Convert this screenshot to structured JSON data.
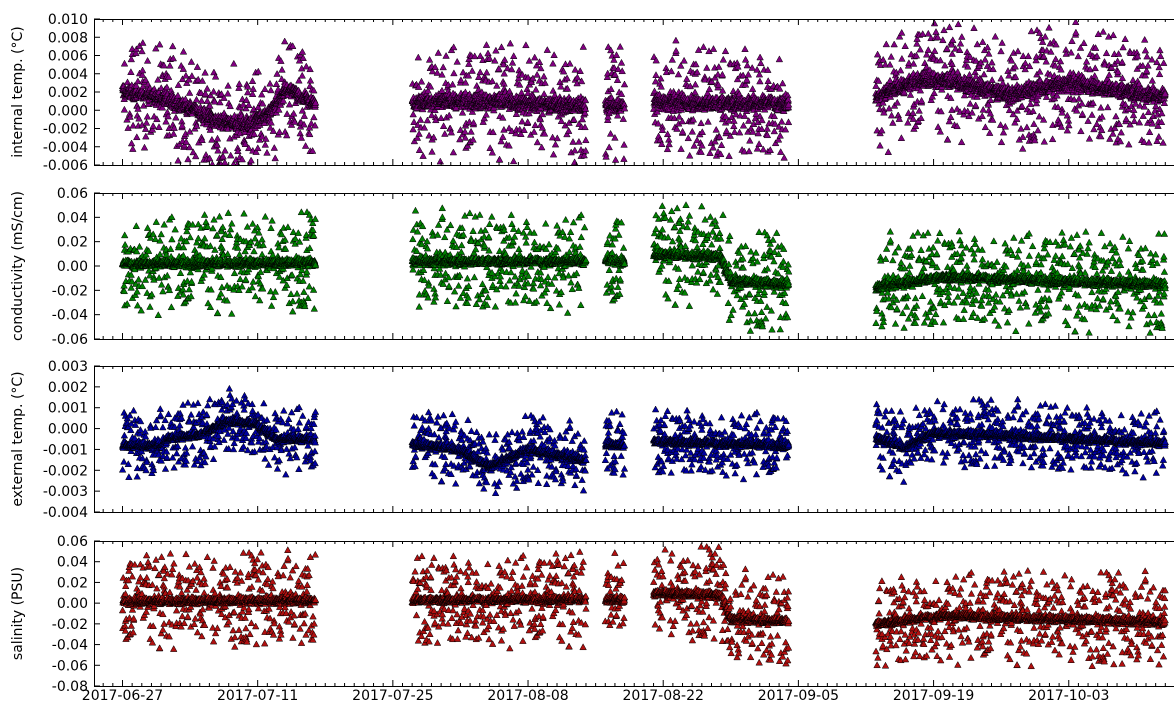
{
  "chart_data": {
    "type": "scatter",
    "marker": "triangle",
    "shared_x": {
      "range": [
        "2017-06-27",
        "2017-10-13"
      ],
      "tick_labels": [
        "2017-06-27",
        "2017-07-11",
        "2017-07-25",
        "2017-08-08",
        "2017-08-22",
        "2017-09-05",
        "2017-09-19",
        "2017-10-03"
      ]
    },
    "data_segments": [
      [
        "2017-06-27",
        "2017-07-17"
      ],
      [
        "2017-07-27",
        "2017-08-14"
      ],
      [
        "2017-08-16",
        "2017-08-18"
      ],
      [
        "2017-08-21",
        "2017-09-04"
      ],
      [
        "2017-09-13",
        "2017-10-13"
      ]
    ],
    "panels": [
      {
        "id": "internal",
        "ylabel": "internal temp. (°C)",
        "ylim": [
          -0.006,
          0.01
        ],
        "yticks": [
          "0.010",
          "0.008",
          "0.006",
          "0.004",
          "0.002",
          "0.000",
          "-0.002",
          "-0.004",
          "-0.006"
        ],
        "color": "#800080",
        "trend": [
          [
            "2017-06-27",
            0.002
          ],
          [
            "2017-07-01",
            0.0015
          ],
          [
            "2017-07-04",
            0.0002
          ],
          [
            "2017-07-07",
            -0.0012
          ],
          [
            "2017-07-10",
            -0.0015
          ],
          [
            "2017-07-12",
            -0.0005
          ],
          [
            "2017-07-13",
            0.001
          ],
          [
            "2017-07-14",
            0.0025
          ],
          [
            "2017-07-17",
            0.0005
          ],
          [
            "2017-07-27",
            0.001
          ],
          [
            "2017-08-05",
            0.001
          ],
          [
            "2017-08-14",
            0.0005
          ],
          [
            "2017-08-16",
            0.0005
          ],
          [
            "2017-08-18",
            0.0005
          ],
          [
            "2017-08-21",
            0.001
          ],
          [
            "2017-08-25",
            0.0008
          ],
          [
            "2017-09-04",
            0.0008
          ],
          [
            "2017-09-13",
            0.0015
          ],
          [
            "2017-09-18",
            0.0035
          ],
          [
            "2017-09-22",
            0.003
          ],
          [
            "2017-09-27",
            0.0018
          ],
          [
            "2017-10-03",
            0.003
          ],
          [
            "2017-10-13",
            0.0015
          ]
        ],
        "noise_span": 0.007,
        "core_spread": 0.0015
      },
      {
        "id": "conductivity",
        "ylabel": "conductivity (mS/cm)",
        "ylim": [
          -0.06,
          0.06
        ],
        "yticks": [
          "0.06",
          "0.04",
          "0.02",
          "0.00",
          "-0.02",
          "-0.04",
          "-0.06"
        ],
        "color": "#008000",
        "trend": [
          [
            "2017-06-27",
            0.002
          ],
          [
            "2017-07-17",
            0.003
          ],
          [
            "2017-07-27",
            0.004
          ],
          [
            "2017-08-14",
            0.004
          ],
          [
            "2017-08-16",
            0.005
          ],
          [
            "2017-08-18",
            0.004
          ],
          [
            "2017-08-21",
            0.01
          ],
          [
            "2017-08-28",
            0.008
          ],
          [
            "2017-08-29",
            -0.012
          ],
          [
            "2017-09-04",
            -0.015
          ],
          [
            "2017-09-13",
            -0.017
          ],
          [
            "2017-09-20",
            -0.009
          ],
          [
            "2017-10-13",
            -0.015
          ]
        ],
        "noise_span": 0.045,
        "core_spread": 0.006
      },
      {
        "id": "external",
        "ylabel": "external temp. (°C)",
        "ylim": [
          -0.004,
          0.003
        ],
        "yticks": [
          "0.003",
          "0.002",
          "0.001",
          "0.000",
          "-0.001",
          "-0.002",
          "-0.003",
          "-0.004"
        ],
        "color": "#0000a0",
        "trend": [
          [
            "2017-06-27",
            -0.0008
          ],
          [
            "2017-07-01",
            -0.0008
          ],
          [
            "2017-07-02",
            -0.0004
          ],
          [
            "2017-07-05",
            -0.0003
          ],
          [
            "2017-07-08",
            0.0004
          ],
          [
            "2017-07-11",
            0.0002
          ],
          [
            "2017-07-13",
            -0.0005
          ],
          [
            "2017-07-17",
            -0.0005
          ],
          [
            "2017-07-27",
            -0.0007
          ],
          [
            "2017-08-01",
            -0.001
          ],
          [
            "2017-08-04",
            -0.0018
          ],
          [
            "2017-08-08",
            -0.001
          ],
          [
            "2017-08-14",
            -0.0015
          ],
          [
            "2017-08-16",
            -0.0007
          ],
          [
            "2017-08-18",
            -0.0008
          ],
          [
            "2017-08-21",
            -0.0006
          ],
          [
            "2017-09-04",
            -0.0008
          ],
          [
            "2017-09-13",
            -0.0004
          ],
          [
            "2017-09-16",
            -0.0009
          ],
          [
            "2017-09-19",
            -0.0002
          ],
          [
            "2017-09-26",
            -0.0003
          ],
          [
            "2017-10-13",
            -0.0007
          ]
        ],
        "noise_span": 0.0018,
        "core_spread": 0.0003
      },
      {
        "id": "salinity",
        "ylabel": "salinity (PSU)",
        "ylim": [
          -0.08,
          0.06
        ],
        "yticks": [
          "0.06",
          "0.04",
          "0.02",
          "0.00",
          "-0.02",
          "-0.04",
          "-0.06",
          "-0.08"
        ],
        "color": "#b01010",
        "trend": [
          [
            "2017-06-27",
            0.002
          ],
          [
            "2017-07-17",
            0.003
          ],
          [
            "2017-07-27",
            0.003
          ],
          [
            "2017-08-14",
            0.004
          ],
          [
            "2017-08-16",
            0.004
          ],
          [
            "2017-08-18",
            0.003
          ],
          [
            "2017-08-21",
            0.01
          ],
          [
            "2017-08-28",
            0.008
          ],
          [
            "2017-08-29",
            -0.015
          ],
          [
            "2017-09-04",
            -0.017
          ],
          [
            "2017-09-13",
            -0.02
          ],
          [
            "2017-09-20",
            -0.012
          ],
          [
            "2017-10-13",
            -0.018
          ]
        ],
        "noise_span": 0.05,
        "core_spread": 0.006
      }
    ]
  }
}
